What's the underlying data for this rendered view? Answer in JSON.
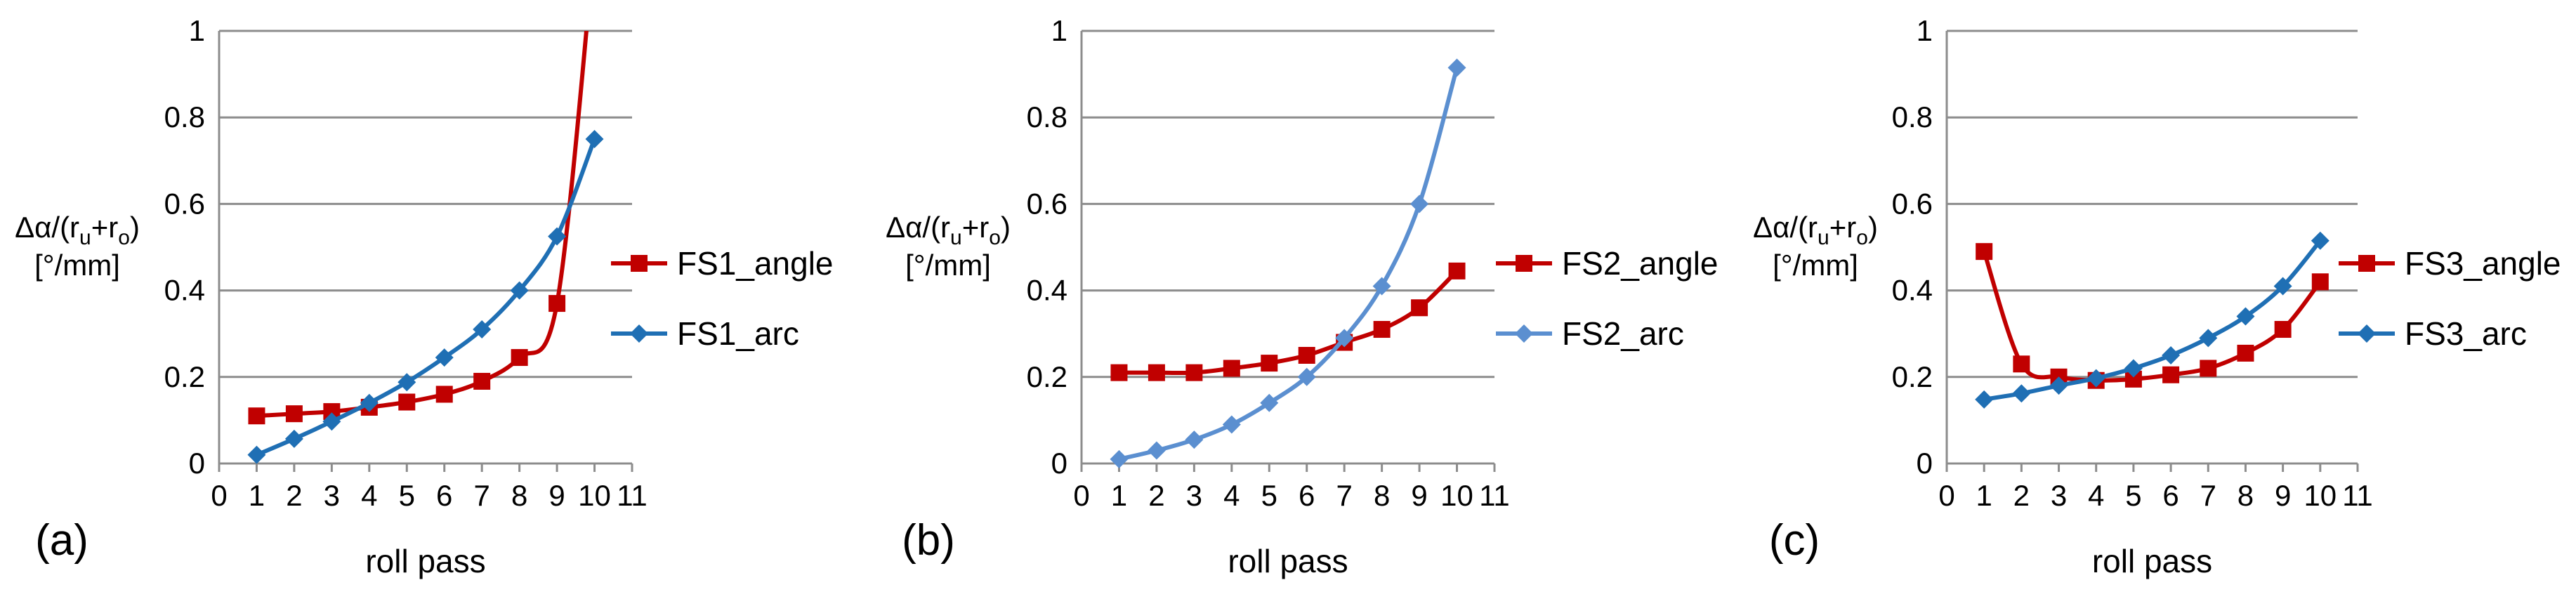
{
  "chart_data": [
    {
      "type": "line",
      "panel_label": "(a)",
      "xlabel": "roll pass",
      "ylabel": {
        "line1": "Δα/(r",
        "sub1": "u",
        "mid": "+r",
        "sub2": "o",
        "end": ")",
        "line2": "[°/mm]"
      },
      "xlim": [
        0,
        11
      ],
      "ylim": [
        0,
        1
      ],
      "x_ticks": [
        "0",
        "1",
        "2",
        "3",
        "4",
        "5",
        "6",
        "7",
        "8",
        "9",
        "10",
        "11"
      ],
      "y_ticks": [
        "0",
        "0.2",
        "0.4",
        "0.6",
        "0.8",
        "1"
      ],
      "grid": "horizontal",
      "legend_position": "right",
      "x": [
        1,
        2,
        3,
        4,
        5,
        6,
        7,
        8,
        9,
        10
      ],
      "series": [
        {
          "name": "FS1_angle",
          "color": "#c00000",
          "marker": "square",
          "values": [
            0.11,
            0.115,
            0.12,
            0.13,
            0.142,
            0.16,
            0.19,
            0.245,
            0.37,
            1.2
          ]
        },
        {
          "name": "FS1_arc",
          "color": "#1f6fb4",
          "marker": "diamond",
          "values": [
            0.02,
            0.057,
            0.097,
            0.14,
            0.188,
            0.245,
            0.31,
            0.4,
            0.525,
            0.75
          ]
        }
      ]
    },
    {
      "type": "line",
      "panel_label": "(b)",
      "xlabel": "roll pass",
      "ylabel": {
        "line1": "Δα/(r",
        "sub1": "u",
        "mid": "+r",
        "sub2": "o",
        "end": ")",
        "line2": "[°/mm]"
      },
      "xlim": [
        0,
        11
      ],
      "ylim": [
        0,
        1
      ],
      "x_ticks": [
        "0",
        "1",
        "2",
        "3",
        "4",
        "5",
        "6",
        "7",
        "8",
        "9",
        "10",
        "11"
      ],
      "y_ticks": [
        "0",
        "0.2",
        "0.4",
        "0.6",
        "0.8",
        "1"
      ],
      "grid": "horizontal",
      "legend_position": "right",
      "x": [
        1,
        2,
        3,
        4,
        5,
        6,
        7,
        8,
        9,
        10
      ],
      "series": [
        {
          "name": "FS2_angle",
          "color": "#c00000",
          "marker": "square",
          "values": [
            0.21,
            0.21,
            0.21,
            0.22,
            0.232,
            0.25,
            0.28,
            0.31,
            0.36,
            0.445
          ]
        },
        {
          "name": "FS2_arc",
          "color": "#5b8fd0",
          "marker": "diamond",
          "values": [
            0.01,
            0.03,
            0.055,
            0.09,
            0.14,
            0.2,
            0.29,
            0.41,
            0.6,
            0.915
          ]
        }
      ]
    },
    {
      "type": "line",
      "panel_label": "(c)",
      "xlabel": "roll pass",
      "ylabel": {
        "line1": "Δα/(r",
        "sub1": "u",
        "mid": "+r",
        "sub2": "o",
        "end": ")",
        "line2": "[°/mm]"
      },
      "xlim": [
        0,
        11
      ],
      "ylim": [
        0,
        1
      ],
      "x_ticks": [
        "0",
        "1",
        "2",
        "3",
        "4",
        "5",
        "6",
        "7",
        "8",
        "9",
        "10",
        "11"
      ],
      "y_ticks": [
        "0",
        "0.2",
        "0.4",
        "0.6",
        "0.8",
        "1"
      ],
      "grid": "horizontal",
      "legend_position": "right",
      "x": [
        1,
        2,
        3,
        4,
        5,
        6,
        7,
        8,
        9,
        10
      ],
      "series": [
        {
          "name": "FS3_angle",
          "color": "#c00000",
          "marker": "square",
          "values": [
            0.49,
            0.23,
            0.2,
            0.192,
            0.195,
            0.205,
            0.22,
            0.255,
            0.31,
            0.42
          ]
        },
        {
          "name": "FS3_arc",
          "color": "#1f6fb4",
          "marker": "diamond",
          "values": [
            0.148,
            0.162,
            0.18,
            0.197,
            0.22,
            0.25,
            0.29,
            0.34,
            0.41,
            0.515
          ]
        }
      ]
    }
  ]
}
